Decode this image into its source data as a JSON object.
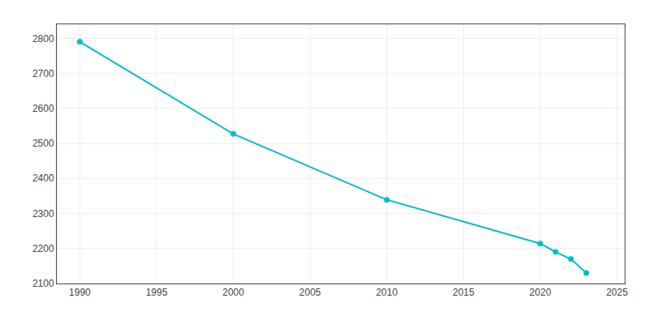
{
  "chart_data": {
    "type": "line",
    "x": [
      1990,
      2000,
      2010,
      2020,
      2021,
      2022,
      2023
    ],
    "values": [
      2790,
      2527,
      2339,
      2214,
      2190,
      2170,
      2130
    ],
    "color": "#00BCD4",
    "marker": "circle",
    "xlim": [
      1988.5,
      2025.5
    ],
    "xticks": [
      1990,
      1995,
      2000,
      2005,
      2010,
      2015,
      2020,
      2025
    ],
    "ylim": [
      2100,
      2840
    ],
    "yticks": [
      2100,
      2200,
      2300,
      2400,
      2500,
      2600,
      2700,
      2800
    ],
    "grid": true
  }
}
